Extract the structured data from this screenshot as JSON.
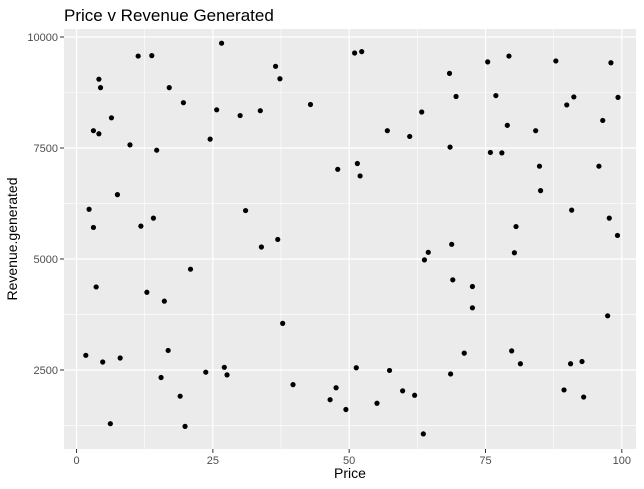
{
  "chart_data": {
    "type": "scatter",
    "title": "Price v Revenue Generated",
    "xlabel": "Price",
    "ylabel": "Revenue.generated",
    "xlim": [
      -2.3,
      102.6
    ],
    "ylim": [
      720,
      10180
    ],
    "xticks": [
      0,
      25,
      50,
      75,
      100
    ],
    "yticks": [
      2500,
      5000,
      7500,
      10000
    ],
    "grid": true,
    "legend": "none",
    "colors": {
      "panel": "#ebebeb",
      "grid_major": "#ffffff",
      "point": "#000000",
      "tick": "#333333"
    },
    "points": [
      [
        1.7,
        2830
      ],
      [
        2.3,
        6120
      ],
      [
        3.1,
        5710
      ],
      [
        3.1,
        7890
      ],
      [
        3.6,
        4370
      ],
      [
        4.1,
        7820
      ],
      [
        4.1,
        9050
      ],
      [
        4.4,
        8860
      ],
      [
        4.8,
        2680
      ],
      [
        6.2,
        1290
      ],
      [
        6.4,
        8180
      ],
      [
        7.5,
        6450
      ],
      [
        8.0,
        2770
      ],
      [
        9.8,
        7570
      ],
      [
        11.3,
        9570
      ],
      [
        11.8,
        5740
      ],
      [
        12.9,
        4250
      ],
      [
        13.8,
        9580
      ],
      [
        14.1,
        5920
      ],
      [
        14.7,
        7450
      ],
      [
        15.5,
        2330
      ],
      [
        16.1,
        4050
      ],
      [
        16.8,
        2940
      ],
      [
        17.0,
        8860
      ],
      [
        19.0,
        1910
      ],
      [
        19.6,
        8520
      ],
      [
        19.9,
        1230
      ],
      [
        20.9,
        4770
      ],
      [
        23.7,
        2450
      ],
      [
        24.5,
        7700
      ],
      [
        25.7,
        8360
      ],
      [
        26.6,
        9860
      ],
      [
        27.1,
        2560
      ],
      [
        27.6,
        2390
      ],
      [
        30.0,
        8230
      ],
      [
        31.0,
        6090
      ],
      [
        33.7,
        8340
      ],
      [
        33.9,
        5270
      ],
      [
        36.5,
        9340
      ],
      [
        36.9,
        5440
      ],
      [
        37.3,
        9060
      ],
      [
        37.8,
        3550
      ],
      [
        39.7,
        2170
      ],
      [
        42.9,
        8480
      ],
      [
        46.5,
        1830
      ],
      [
        47.6,
        2100
      ],
      [
        47.9,
        7020
      ],
      [
        49.4,
        1610
      ],
      [
        51.0,
        9640
      ],
      [
        51.3,
        2550
      ],
      [
        51.5,
        7150
      ],
      [
        52.0,
        6870
      ],
      [
        52.3,
        9670
      ],
      [
        55.1,
        1750
      ],
      [
        57.0,
        7890
      ],
      [
        57.4,
        2490
      ],
      [
        59.8,
        2030
      ],
      [
        61.1,
        7760
      ],
      [
        62.0,
        1930
      ],
      [
        63.3,
        8310
      ],
      [
        63.6,
        1060
      ],
      [
        63.8,
        4980
      ],
      [
        64.5,
        5150
      ],
      [
        68.4,
        9180
      ],
      [
        68.5,
        7520
      ],
      [
        68.6,
        2410
      ],
      [
        68.8,
        5330
      ],
      [
        69.0,
        4530
      ],
      [
        69.6,
        8660
      ],
      [
        71.1,
        2880
      ],
      [
        72.6,
        4380
      ],
      [
        72.6,
        3900
      ],
      [
        75.4,
        9440
      ],
      [
        75.9,
        7400
      ],
      [
        76.9,
        8680
      ],
      [
        78.0,
        7390
      ],
      [
        79.0,
        8010
      ],
      [
        79.3,
        9570
      ],
      [
        79.8,
        2930
      ],
      [
        80.3,
        5140
      ],
      [
        80.6,
        5730
      ],
      [
        81.4,
        2640
      ],
      [
        84.2,
        7890
      ],
      [
        84.9,
        7090
      ],
      [
        85.1,
        6540
      ],
      [
        87.9,
        9460
      ],
      [
        89.4,
        2050
      ],
      [
        89.9,
        8470
      ],
      [
        90.6,
        2640
      ],
      [
        90.8,
        6100
      ],
      [
        91.2,
        8650
      ],
      [
        92.7,
        2690
      ],
      [
        93.0,
        1890
      ],
      [
        95.8,
        7090
      ],
      [
        96.5,
        8120
      ],
      [
        97.4,
        3720
      ],
      [
        97.7,
        5920
      ],
      [
        98.0,
        9420
      ],
      [
        99.2,
        5530
      ],
      [
        99.3,
        8640
      ]
    ]
  }
}
